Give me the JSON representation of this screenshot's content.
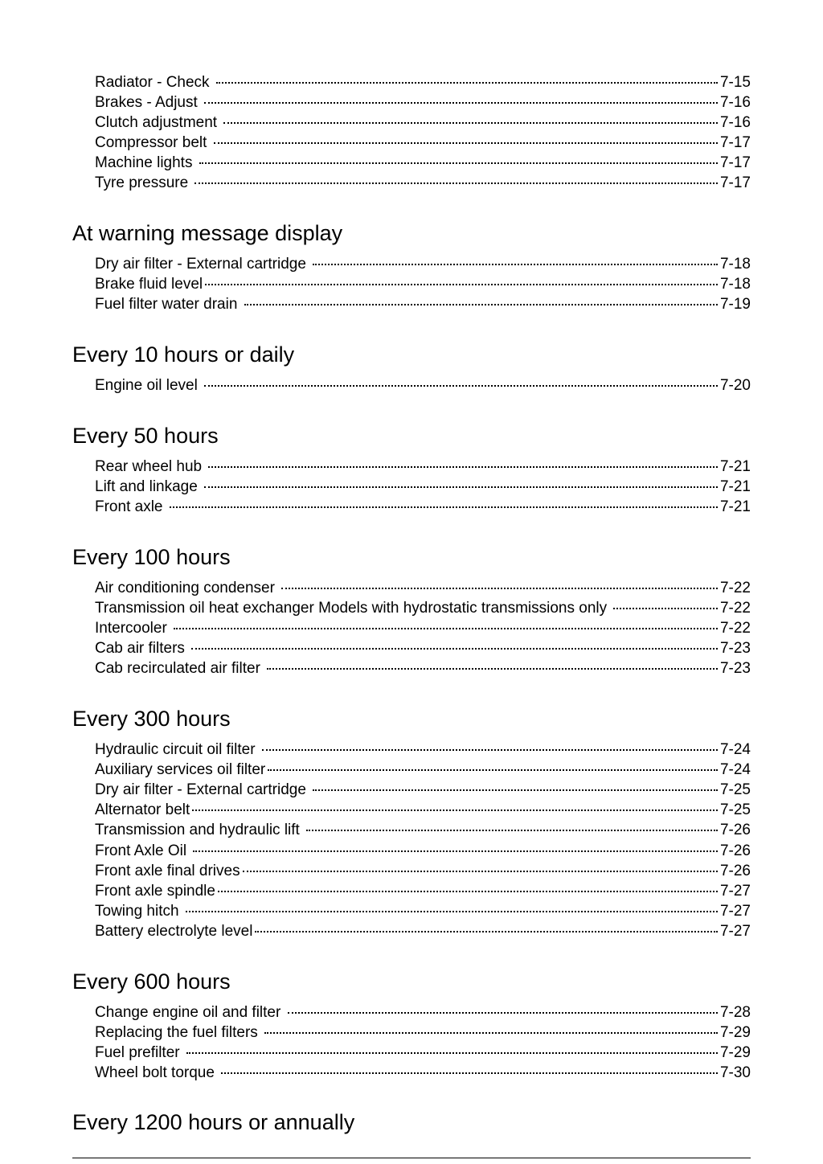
{
  "sections": [
    {
      "title": null,
      "entries": [
        {
          "label": "Radiator - Check ",
          "page": " 7-15"
        },
        {
          "label": "Brakes - Adjust ",
          "page": " 7-16"
        },
        {
          "label": "Clutch adjustment ",
          "page": " 7-16"
        },
        {
          "label": "Compressor belt ",
          "page": " 7-17"
        },
        {
          "label": "Machine lights ",
          "page": " 7-17"
        },
        {
          "label": "Tyre pressure ",
          "page": " 7-17"
        }
      ]
    },
    {
      "title": "At warning message display",
      "entries": [
        {
          "label": "Dry air filter - External cartridge ",
          "page": " 7-18"
        },
        {
          "label": "Brake fluid level",
          "page": " 7-18"
        },
        {
          "label": "Fuel filter water drain ",
          "page": " 7-19"
        }
      ]
    },
    {
      "title": "Every 10 hours or daily",
      "entries": [
        {
          "label": "Engine oil level ",
          "page": " 7-20"
        }
      ]
    },
    {
      "title": "Every 50 hours",
      "entries": [
        {
          "label": "Rear wheel hub ",
          "page": " 7-21"
        },
        {
          "label": "Lift and linkage ",
          "page": " 7-21"
        },
        {
          "label": "Front axle ",
          "page": " 7-21"
        }
      ]
    },
    {
      "title": "Every 100 hours",
      "entries": [
        {
          "label": "Air conditioning condenser ",
          "page": " 7-22"
        },
        {
          "label": "Transmission oil heat exchanger Models with hydrostatic transmissions only ",
          "page": " 7-22"
        },
        {
          "label": "Intercooler ",
          "page": " 7-22"
        },
        {
          "label": "Cab air filters ",
          "page": " 7-23"
        },
        {
          "label": "Cab recirculated air filter ",
          "page": " 7-23"
        }
      ]
    },
    {
      "title": "Every 300 hours",
      "entries": [
        {
          "label": "Hydraulic circuit oil filter ",
          "page": " 7-24"
        },
        {
          "label": "Auxiliary services oil filter",
          "page": " 7-24"
        },
        {
          "label": "Dry air filter - External cartridge ",
          "page": " 7-25"
        },
        {
          "label": "Alternator belt",
          "page": " 7-25"
        },
        {
          "label": "Transmission and hydraulic lift ",
          "page": " 7-26"
        },
        {
          "label": "Front Axle Oil ",
          "page": " 7-26"
        },
        {
          "label": "Front axle final drives",
          "page": " 7-26"
        },
        {
          "label": "Front axle spindle",
          "page": " 7-27"
        },
        {
          "label": "Towing hitch ",
          "page": " 7-27"
        },
        {
          "label": "Battery electrolyte level",
          "page": " 7-27"
        }
      ]
    },
    {
      "title": "Every 600 hours",
      "entries": [
        {
          "label": "Change engine oil and filter ",
          "page": " 7-28"
        },
        {
          "label": "Replacing the fuel filters ",
          "page": " 7-29"
        },
        {
          "label": "Fuel prefilter ",
          "page": " 7-29"
        },
        {
          "label": "Wheel bolt torque ",
          "page": " 7-30"
        }
      ]
    }
  ],
  "trailing_heading": "Every 1200 hours or annually"
}
